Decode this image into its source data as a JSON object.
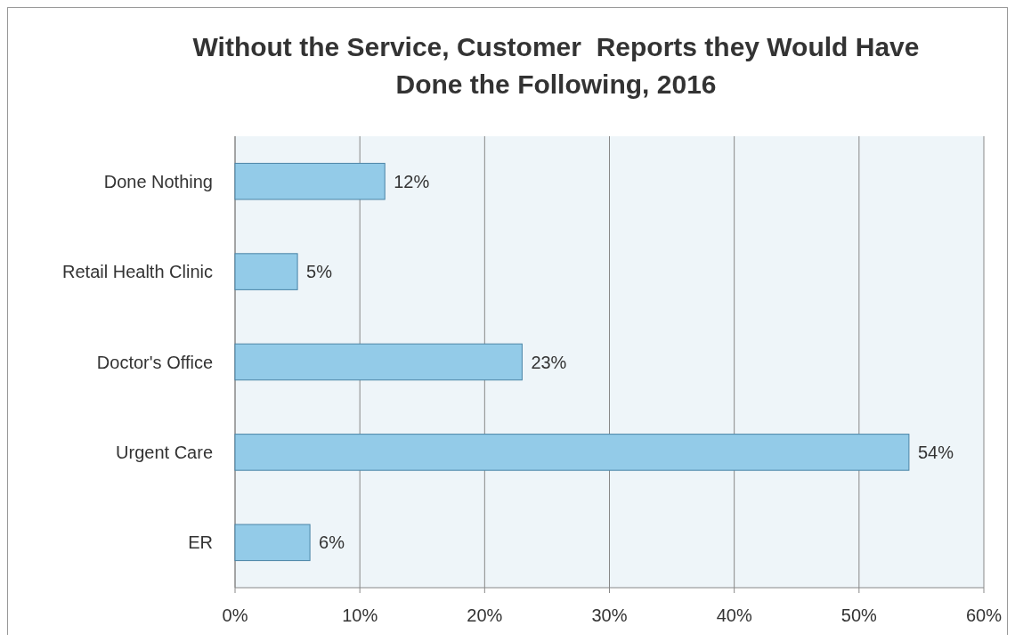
{
  "chart_data": {
    "type": "bar",
    "orientation": "horizontal",
    "title": "Without the Service, Customer  Reports they Would Have Done the Following, 2016",
    "categories": [
      "Done Nothing",
      "Retail Health Clinic",
      "Doctor's Office",
      "Urgent Care",
      "ER"
    ],
    "values": [
      12,
      5,
      23,
      54,
      6
    ],
    "value_labels": [
      "12%",
      "5%",
      "23%",
      "54%",
      "6%"
    ],
    "color": "#93cbe8",
    "xlim": [
      0,
      60
    ],
    "xticks": [
      {
        "value": 0,
        "label": "0%"
      },
      {
        "value": 10,
        "label": "10%"
      },
      {
        "value": 20,
        "label": "20%"
      },
      {
        "value": 30,
        "label": "30%"
      },
      {
        "value": 40,
        "label": "40%"
      },
      {
        "value": 50,
        "label": "50%"
      },
      {
        "value": 60,
        "label": "60%"
      }
    ],
    "grid": "x"
  }
}
